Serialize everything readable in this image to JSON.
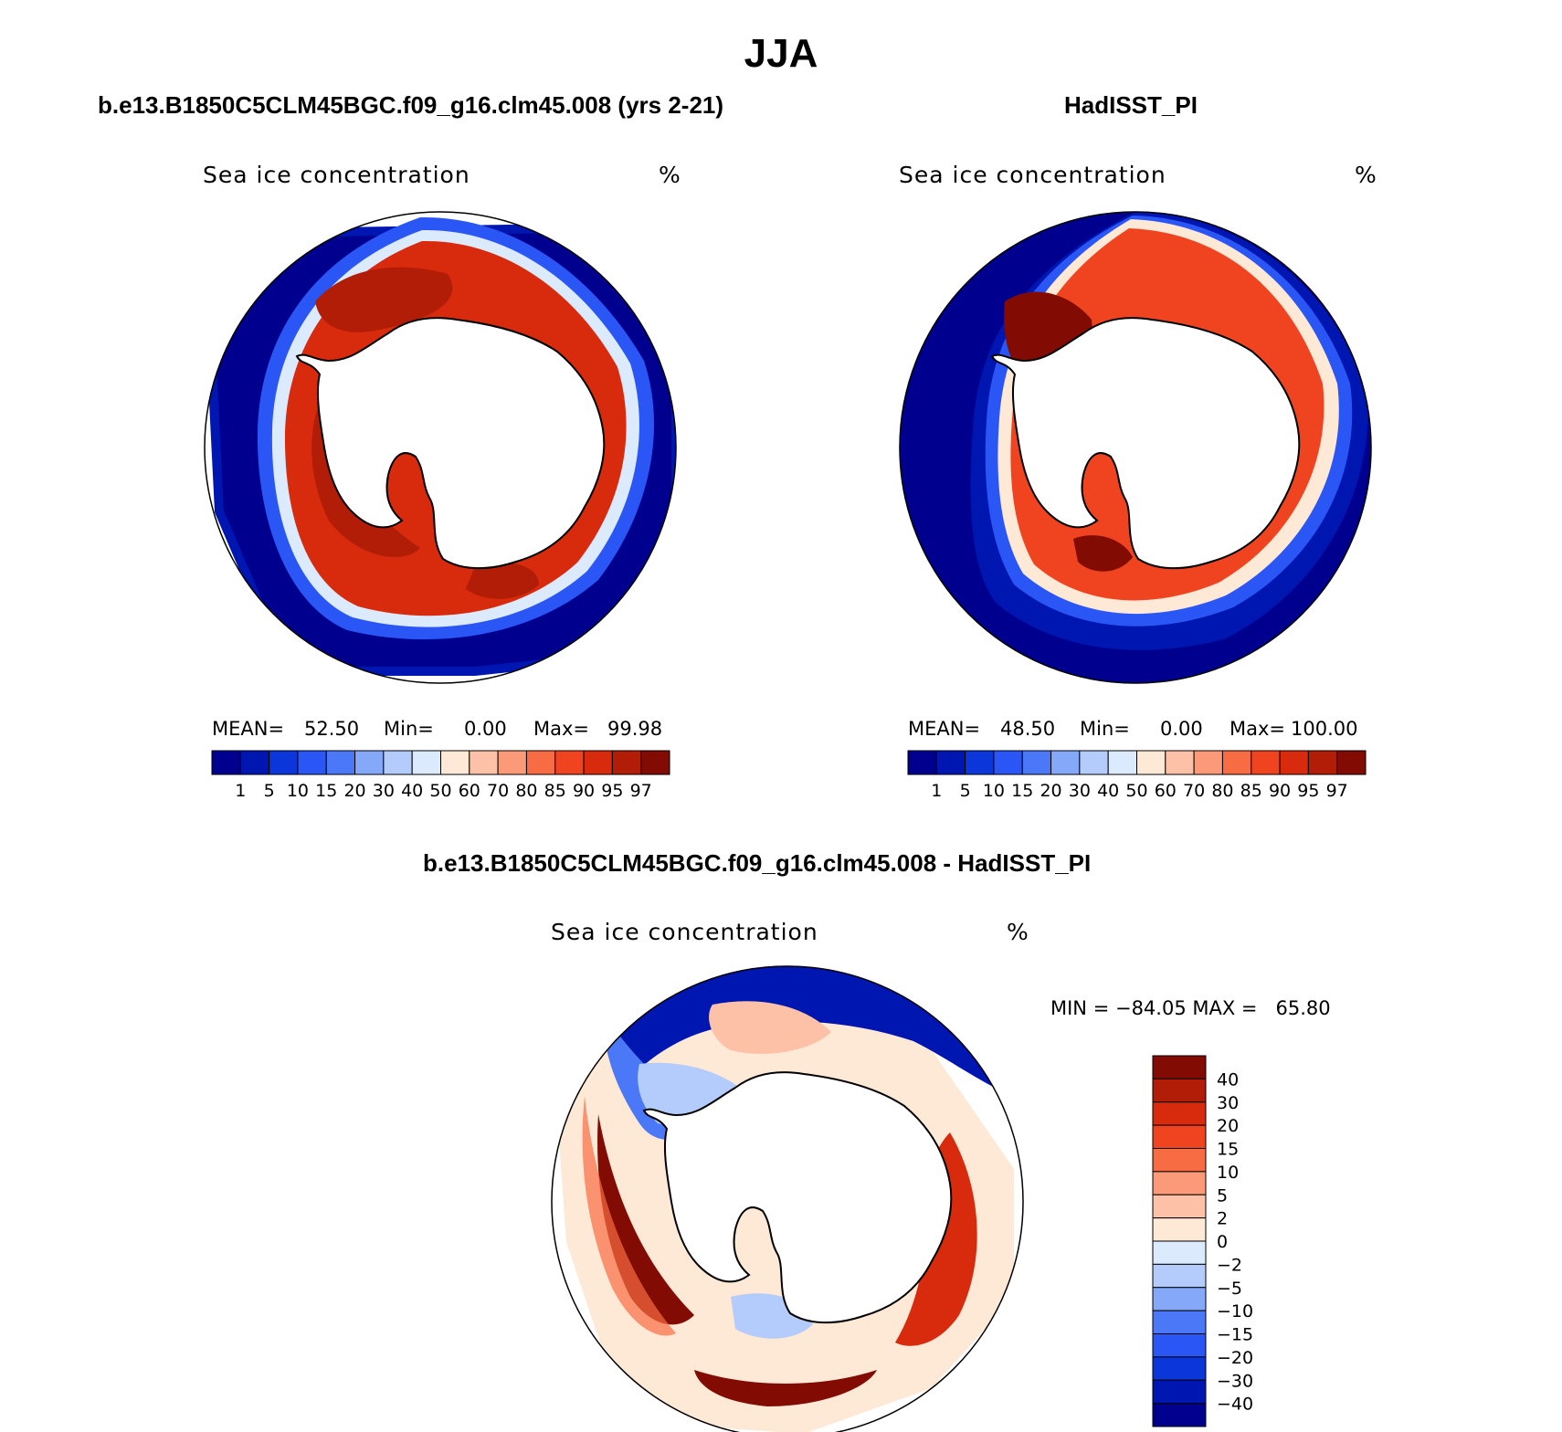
{
  "title": "JJA",
  "panels": [
    {
      "title": "b.e13.B1850C5CLM45BGC.f09_g16.clm45.008 (yrs 2-21)",
      "variable": "Sea ice concentration",
      "units": "%",
      "stats": {
        "mean_label": "MEAN=",
        "mean": "52.50",
        "min_label": "Min=",
        "min": "0.00",
        "max_label": "Max=",
        "max": "99.98"
      }
    },
    {
      "title": "HadISST_PI",
      "variable": "Sea ice concentration",
      "units": "%",
      "stats": {
        "mean_label": "MEAN=",
        "mean": "48.50",
        "min_label": "Min=",
        "min": "0.00",
        "max_label": "Max=",
        "max": "100.00"
      }
    },
    {
      "title": "b.e13.B1850C5CLM45BGC.f09_g16.clm45.008 - HadISST_PI",
      "variable": "Sea ice concentration",
      "units": "%",
      "stats_text": "MIN = −84.05 MAX =   65.80"
    }
  ],
  "chart_data": [
    {
      "type": "heatmap",
      "projection": "south polar stereographic",
      "title": "b.e13.B1850C5CLM45BGC.f09_g16.clm45.008 (yrs 2-21)",
      "colorbar": {
        "orientation": "horizontal",
        "levels": [
          "1",
          "5",
          "10",
          "15",
          "20",
          "30",
          "40",
          "50",
          "60",
          "70",
          "80",
          "85",
          "90",
          "95",
          "97"
        ],
        "colors": [
          "#00008f",
          "#0016b0",
          "#0a36da",
          "#2a56f5",
          "#4b78f7",
          "#86a8f9",
          "#b4ccfb",
          "#dceafe",
          "#fee8d6",
          "#fcc1a6",
          "#fb9a78",
          "#f86c43",
          "#f04421",
          "#d82a0c",
          "#b11d07",
          "#820c03"
        ]
      },
      "regions": [
        "#00008f",
        "#dceafe",
        "#d82a0c",
        "#b11d07"
      ]
    },
    {
      "type": "heatmap",
      "projection": "south polar stereographic",
      "title": "HadISST_PI",
      "colorbar": {
        "orientation": "horizontal",
        "levels": [
          "1",
          "5",
          "10",
          "15",
          "20",
          "30",
          "40",
          "50",
          "60",
          "70",
          "80",
          "85",
          "90",
          "95",
          "97"
        ],
        "colors": [
          "#00008f",
          "#0016b0",
          "#0a36da",
          "#2a56f5",
          "#4b78f7",
          "#86a8f9",
          "#b4ccfb",
          "#dceafe",
          "#fee8d6",
          "#fcc1a6",
          "#fb9a78",
          "#f86c43",
          "#f04421",
          "#d82a0c",
          "#b11d07",
          "#820c03"
        ]
      },
      "regions": [
        "#00008f",
        "#fee8d6",
        "#f04421",
        "#820c03"
      ]
    },
    {
      "type": "heatmap",
      "projection": "south polar stereographic",
      "title": "b.e13.B1850C5CLM45BGC.f09_g16.clm45.008 - HadISST_PI",
      "colorbar": {
        "orientation": "vertical",
        "levels": [
          "40",
          "30",
          "20",
          "15",
          "10",
          "5",
          "2",
          "0",
          "−2",
          "−5",
          "−10",
          "−15",
          "−20",
          "−30",
          "−40"
        ],
        "colors": [
          "#820c03",
          "#b11d07",
          "#d82a0c",
          "#f04421",
          "#f86c43",
          "#fb9a78",
          "#fcc1a6",
          "#fee8d6",
          "#dceafe",
          "#b4ccfb",
          "#86a8f9",
          "#4b78f7",
          "#2a56f5",
          "#0a36da",
          "#0016b0",
          "#00008f"
        ]
      },
      "regions": [
        "#00008f",
        "#fee8d6",
        "#820c03",
        "#b4ccfb",
        "#f86c43"
      ]
    }
  ]
}
